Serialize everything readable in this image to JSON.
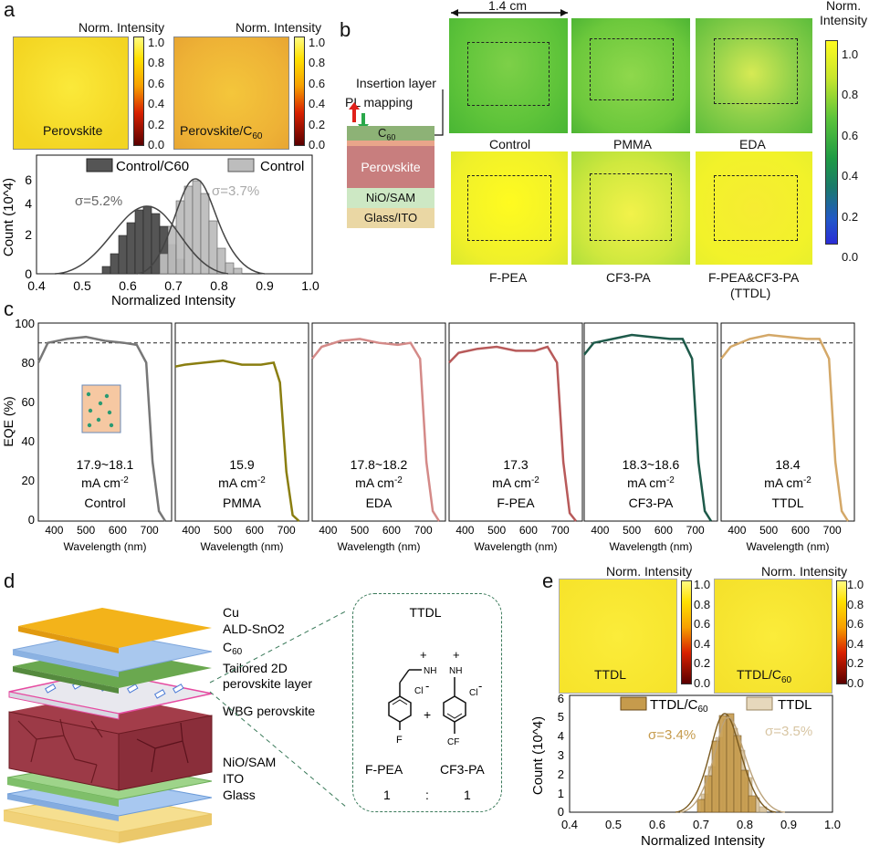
{
  "panel_labels": {
    "a": "a",
    "b": "b",
    "c": "c",
    "d": "d",
    "e": "e"
  },
  "norm_intensity": "Norm. Intensity",
  "cbar_ticks": [
    "1.0",
    "0.8",
    "0.6",
    "0.4",
    "0.2",
    "0.0"
  ],
  "panel_a": {
    "maps": [
      "Perovskite",
      "Perovskite/C60"
    ],
    "hist": {
      "legend": [
        "Control/C60",
        "Control"
      ],
      "sigma": [
        "σ=5.2%",
        "σ=3.7%"
      ],
      "xlabel": "Normalized Intensity",
      "ylabel": "Count (10^4)",
      "xticks": [
        "0.4",
        "0.5",
        "0.6",
        "0.7",
        "0.8",
        "0.9",
        "1.0"
      ],
      "yticks": [
        "0",
        "2",
        "4",
        "6"
      ]
    }
  },
  "panel_b": {
    "scale": "1.4 cm",
    "stack": [
      "C60",
      "Perovskite",
      "NiO/SAM",
      "Glass/ITO"
    ],
    "insertion": "Insertion layer",
    "pl": "PL mapping",
    "maps_top": [
      "Control",
      "PMMA",
      "EDA"
    ],
    "maps_bottom": [
      "F-PEA",
      "CF3-PA",
      "F-PEA&CF3-PA",
      "(TTDL)"
    ],
    "cbar_title": [
      "Norm.",
      "Intensity"
    ]
  },
  "panel_c": {
    "ylabel": "EQE (%)",
    "xlabel": "Wavelength (nm)",
    "yticks": [
      "100",
      "80",
      "60",
      "40",
      "20",
      "0"
    ],
    "xticks": [
      "400",
      "500",
      "600",
      "700"
    ],
    "unit": "mA cm-2",
    "subpanels": [
      {
        "name": "Control",
        "jsc": "17.9~18.1"
      },
      {
        "name": "PMMA",
        "jsc": "15.9"
      },
      {
        "name": "EDA",
        "jsc": "17.8~18.2"
      },
      {
        "name": "F-PEA",
        "jsc": "17.3"
      },
      {
        "name": "CF3-PA",
        "jsc": "18.3~18.6"
      },
      {
        "name": "TTDL",
        "jsc": "18.4"
      }
    ]
  },
  "panel_d": {
    "layers": [
      "Cu",
      "ALD-SnO2",
      "C60",
      "Tailored 2D",
      "perovskite layer",
      "WBG perovskite",
      "NiO/SAM",
      "ITO",
      "Glass"
    ],
    "ttdl": "TTDL",
    "mol1": "F-PEA",
    "mol2": "CF3-PA",
    "ratio": [
      "1",
      ":",
      "1"
    ],
    "plus": "+",
    "nh3": "NH",
    "cl": "Cl",
    "f": "F",
    "cf3": "CF"
  },
  "panel_e": {
    "maps": [
      "TTDL",
      "TTDL/C60"
    ],
    "hist": {
      "legend": [
        "TTDL/C60",
        "TTDL"
      ],
      "sigma": [
        "σ=3.4%",
        "σ=3.5%"
      ],
      "xlabel": "Normalized Intensity",
      "ylabel": "Count (10^4)",
      "xticks": [
        "0.4",
        "0.5",
        "0.6",
        "0.7",
        "0.8",
        "0.9",
        "1.0"
      ],
      "yticks": [
        "0",
        "1",
        "2",
        "3",
        "4",
        "5",
        "6"
      ]
    }
  }
}
